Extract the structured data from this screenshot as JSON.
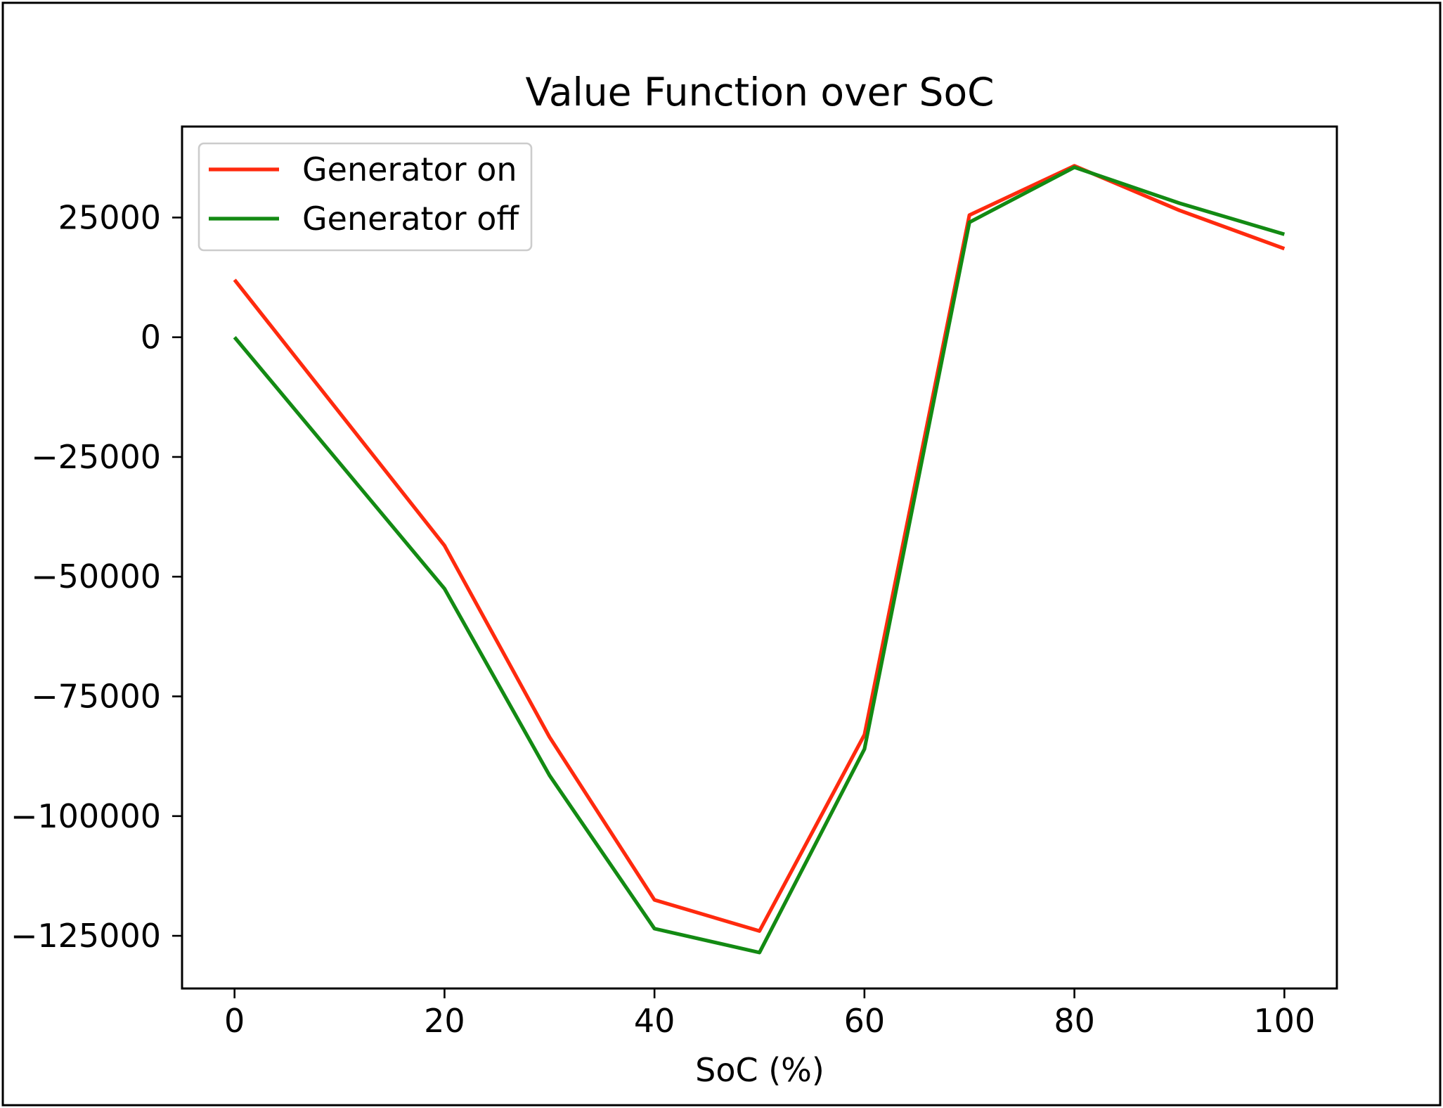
{
  "chart_data": {
    "type": "line",
    "title": "Value Function over SoC",
    "xlabel": "SoC (%)",
    "ylabel": "",
    "x": [
      0,
      20,
      30,
      40,
      50,
      60,
      70,
      80,
      90,
      100
    ],
    "series": [
      {
        "name": "Generator on",
        "color": "#ff2a0e",
        "values": [
          12000,
          -43500,
          -83500,
          -117500,
          -124000,
          -83000,
          25500,
          35800,
          26500,
          18500
        ]
      },
      {
        "name": "Generator off",
        "color": "#138a13",
        "values": [
          0,
          -52500,
          -91500,
          -123500,
          -128500,
          -86000,
          24000,
          35500,
          28000,
          21500
        ]
      }
    ],
    "xticks": [
      0,
      20,
      40,
      60,
      80,
      100
    ],
    "xtick_labels": [
      "0",
      "20",
      "40",
      "60",
      "80",
      "100"
    ],
    "yticks": [
      25000,
      0,
      -25000,
      -50000,
      -75000,
      -100000,
      -125000
    ],
    "ytick_labels": [
      "25000",
      "0",
      "−25000",
      "−50000",
      "−75000",
      "−100000",
      "−125000"
    ],
    "xlim": [
      -5,
      105
    ],
    "ylim": [
      -136000,
      44000
    ],
    "grid": false,
    "legend_position": "upper-left"
  }
}
